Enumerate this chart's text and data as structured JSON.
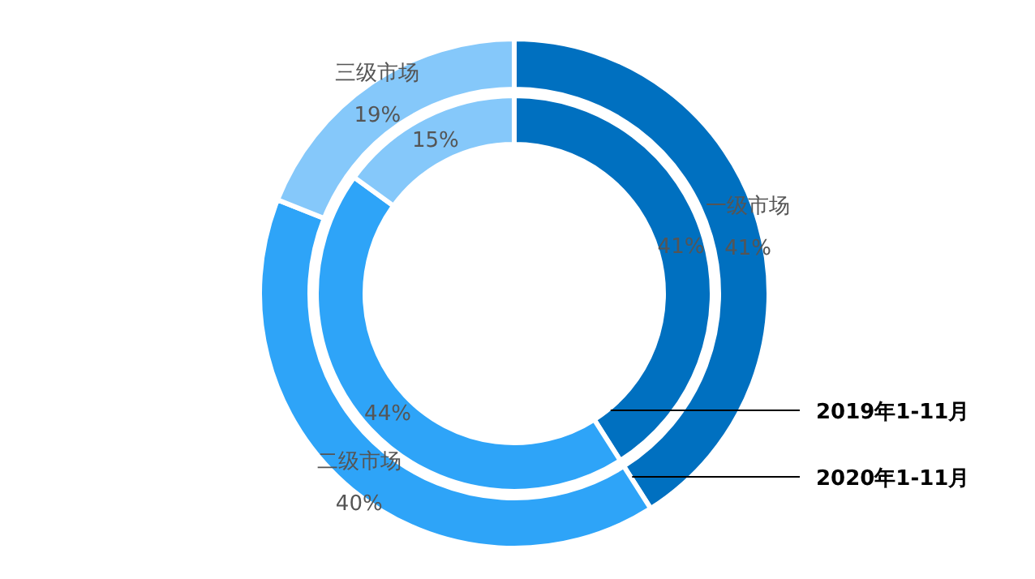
{
  "chart_data": {
    "type": "donut",
    "categories": [
      "一级市场",
      "二级市场",
      "三级市场"
    ],
    "colors": [
      "#0070c0",
      "#2ea4f8",
      "#85c8fa"
    ],
    "series": [
      {
        "name": "2020年1-11月",
        "values": [
          41,
          40,
          19
        ],
        "value_labels": [
          "41%",
          "40%",
          "19%"
        ]
      },
      {
        "name": "2019年1-11月",
        "values": [
          41,
          44,
          15
        ],
        "value_labels": [
          "41%",
          "44%",
          "15%"
        ]
      }
    ]
  }
}
